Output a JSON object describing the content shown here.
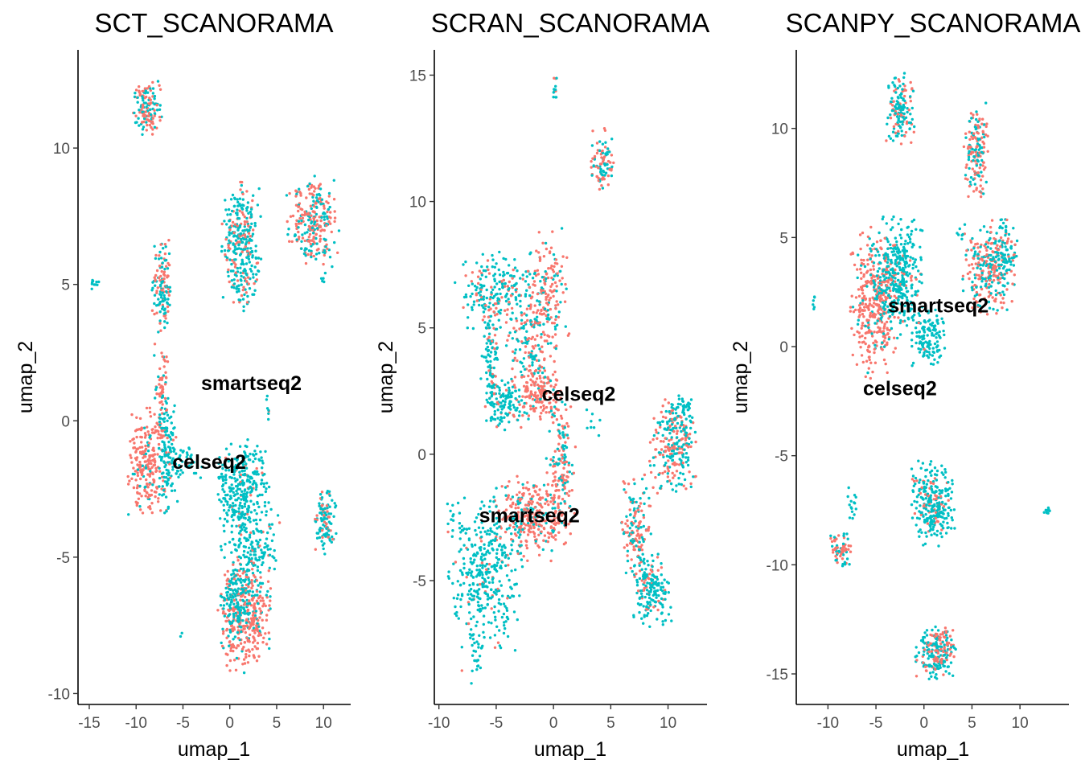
{
  "chart_data": [
    {
      "type": "scatter",
      "title": "SCT_SCANORAMA",
      "xlabel": "umap_1",
      "ylabel": "umap_2",
      "xlim": [
        -16.2,
        12.9
      ],
      "ylim": [
        -10.4,
        13.6
      ],
      "xticks": [
        -15,
        -10,
        -5,
        0,
        5,
        10
      ],
      "xtick_labels": [
        "-15",
        "-10",
        "-5",
        "0",
        "5",
        "10"
      ],
      "yticks": [
        -10,
        -5,
        0,
        5,
        10
      ],
      "ytick_labels": [
        "-10",
        "-5",
        "0",
        "5",
        "10"
      ],
      "grid": false,
      "legend": "none",
      "series": [
        {
          "name": "celseq2",
          "color": "#F8766D"
        },
        {
          "name": "smartseq2",
          "color": "#00BFC4"
        }
      ],
      "labels": [
        {
          "text": "smartseq2",
          "x": 2.3,
          "y": 1.4
        },
        {
          "text": "celseq2",
          "x": -2.2,
          "y": -1.5
        }
      ],
      "clusters": [
        {
          "x": -8.8,
          "y": 11.4,
          "sx": 0.7,
          "sy": 0.5,
          "n": 140,
          "red": 0.55
        },
        {
          "x": 1.2,
          "y": 6.4,
          "sx": 1.0,
          "sy": 1.1,
          "n": 320,
          "red": 0.3
        },
        {
          "x": 8.9,
          "y": 7.3,
          "sx": 1.3,
          "sy": 0.8,
          "n": 260,
          "red": 0.55
        },
        {
          "x": -7.2,
          "y": 4.9,
          "sx": 0.5,
          "sy": 0.8,
          "n": 130,
          "red": 0.45
        },
        {
          "x": -14.3,
          "y": 5.0,
          "sx": 0.25,
          "sy": 0.15,
          "n": 10,
          "red": 0.0
        },
        {
          "x": 10.1,
          "y": 5.2,
          "sx": 0.2,
          "sy": 0.2,
          "n": 5,
          "red": 0.0
        },
        {
          "x": -7.3,
          "y": 1.0,
          "sx": 0.4,
          "sy": 0.9,
          "n": 70,
          "red": 0.7
        },
        {
          "x": -8.8,
          "y": -1.5,
          "sx": 1.0,
          "sy": 0.9,
          "n": 230,
          "red": 0.9
        },
        {
          "x": -6.6,
          "y": -1.4,
          "sx": 0.5,
          "sy": 0.9,
          "n": 120,
          "red": 0.1
        },
        {
          "x": -4.5,
          "y": -1.5,
          "sx": 0.8,
          "sy": 0.3,
          "n": 35,
          "red": 0.05
        },
        {
          "x": 1.4,
          "y": -2.4,
          "sx": 1.3,
          "sy": 0.8,
          "n": 280,
          "red": 0.05
        },
        {
          "x": 2.3,
          "y": -4.8,
          "sx": 1.5,
          "sy": 0.9,
          "n": 220,
          "red": 0.1
        },
        {
          "x": 1.5,
          "y": -7.3,
          "sx": 1.3,
          "sy": 0.9,
          "n": 340,
          "red": 0.8
        },
        {
          "x": 0.5,
          "y": -6.5,
          "sx": 0.7,
          "sy": 0.5,
          "n": 90,
          "red": 0.05
        },
        {
          "x": 10.1,
          "y": -3.6,
          "sx": 0.6,
          "sy": 0.6,
          "n": 110,
          "red": 0.3
        },
        {
          "x": 4.1,
          "y": 0.4,
          "sx": 0.15,
          "sy": 0.25,
          "n": 7,
          "red": 0.3
        },
        {
          "x": -5.3,
          "y": -8.0,
          "sx": 0.1,
          "sy": 0.1,
          "n": 2,
          "red": 0.0
        }
      ]
    },
    {
      "type": "scatter",
      "title": "SCRAN_SCANORAMA",
      "xlabel": "umap_1",
      "ylabel": "umap_2",
      "xlim": [
        -10.4,
        13.4
      ],
      "ylim": [
        -9.9,
        16.0
      ],
      "xticks": [
        -10,
        -5,
        0,
        5,
        10
      ],
      "xtick_labels": [
        "-10",
        "-5",
        "0",
        "5",
        "10"
      ],
      "yticks": [
        -5,
        0,
        5,
        10,
        15
      ],
      "ytick_labels": [
        "-5",
        "0",
        "5",
        "10",
        "15"
      ],
      "grid": false,
      "legend": "none",
      "series": [
        {
          "name": "celseq2",
          "color": "#F8766D"
        },
        {
          "name": "smartseq2",
          "color": "#00BFC4"
        }
      ],
      "labels": [
        {
          "text": "celseq2",
          "x": 2.2,
          "y": 2.4
        },
        {
          "text": "smartseq2",
          "x": -2.1,
          "y": -2.4
        }
      ],
      "clusters": [
        {
          "x": 0.1,
          "y": 14.5,
          "sx": 0.1,
          "sy": 0.2,
          "n": 12,
          "red": 0.3
        },
        {
          "x": 4.3,
          "y": 11.6,
          "sx": 0.5,
          "sy": 0.6,
          "n": 90,
          "red": 0.45
        },
        {
          "x": -4.8,
          "y": 6.5,
          "sx": 1.8,
          "sy": 0.7,
          "n": 220,
          "red": 0.25
        },
        {
          "x": -0.5,
          "y": 6.2,
          "sx": 0.9,
          "sy": 1.3,
          "n": 180,
          "red": 0.7
        },
        {
          "x": -5.5,
          "y": 3.8,
          "sx": 0.4,
          "sy": 1.0,
          "n": 90,
          "red": 0.2
        },
        {
          "x": -2.2,
          "y": 4.0,
          "sx": 0.9,
          "sy": 0.9,
          "n": 130,
          "red": 0.5
        },
        {
          "x": -4.3,
          "y": 2.0,
          "sx": 0.9,
          "sy": 0.5,
          "n": 120,
          "red": 0.15
        },
        {
          "x": -1.1,
          "y": 2.3,
          "sx": 0.9,
          "sy": 0.5,
          "n": 140,
          "red": 0.9
        },
        {
          "x": 0.6,
          "y": -0.5,
          "sx": 0.6,
          "sy": 1.2,
          "n": 150,
          "red": 0.6
        },
        {
          "x": -2.0,
          "y": -2.5,
          "sx": 1.6,
          "sy": 0.8,
          "n": 300,
          "red": 0.8
        },
        {
          "x": -6.0,
          "y": -4.7,
          "sx": 1.6,
          "sy": 1.4,
          "n": 380,
          "red": 0.08
        },
        {
          "x": 7.2,
          "y": -3.0,
          "sx": 0.6,
          "sy": 1.0,
          "n": 150,
          "red": 0.55
        },
        {
          "x": 8.6,
          "y": -5.4,
          "sx": 0.8,
          "sy": 0.7,
          "n": 170,
          "red": 0.2
        },
        {
          "x": 10.5,
          "y": 0.3,
          "sx": 1.0,
          "sy": 0.9,
          "n": 230,
          "red": 0.5
        },
        {
          "x": 11.0,
          "y": 1.5,
          "sx": 0.6,
          "sy": 0.4,
          "n": 60,
          "red": 0.1
        },
        {
          "x": -9.0,
          "y": -2.4,
          "sx": 0.3,
          "sy": 0.3,
          "n": 8,
          "red": 0.0
        },
        {
          "x": 3.5,
          "y": 1.2,
          "sx": 0.3,
          "sy": 0.3,
          "n": 8,
          "red": 0.0
        },
        {
          "x": -7.0,
          "y": -8.0,
          "sx": 0.5,
          "sy": 0.6,
          "n": 25,
          "red": 0.05
        }
      ]
    },
    {
      "type": "scatter",
      "title": "SCANPY_SCANORAMA",
      "xlabel": "umap_1",
      "ylabel": "umap_2",
      "xlim": [
        -13.3,
        15.1
      ],
      "ylim": [
        -16.4,
        13.6
      ],
      "xticks": [
        -10,
        -5,
        0,
        5,
        10
      ],
      "xtick_labels": [
        "-10",
        "-5",
        "0",
        "5",
        "10"
      ],
      "yticks": [
        -15,
        -10,
        -5,
        0,
        5,
        10
      ],
      "ytick_labels": [
        "-15",
        "-10",
        "-5",
        "0",
        "5",
        "10"
      ],
      "grid": false,
      "legend": "none",
      "series": [
        {
          "name": "celseq2",
          "color": "#F8766D"
        },
        {
          "name": "smartseq2",
          "color": "#00BFC4"
        }
      ],
      "labels": [
        {
          "text": "smartseq2",
          "x": 1.5,
          "y": 1.9
        },
        {
          "text": "celseq2",
          "x": -2.5,
          "y": -1.9
        }
      ],
      "clusters": [
        {
          "x": -2.5,
          "y": 10.8,
          "sx": 0.7,
          "sy": 0.8,
          "n": 150,
          "red": 0.3
        },
        {
          "x": 5.4,
          "y": 9.0,
          "sx": 0.6,
          "sy": 1.0,
          "n": 160,
          "red": 0.6
        },
        {
          "x": -5.3,
          "y": 2.0,
          "sx": 1.1,
          "sy": 1.6,
          "n": 330,
          "red": 0.9
        },
        {
          "x": -2.8,
          "y": 3.2,
          "sx": 1.3,
          "sy": 1.3,
          "n": 380,
          "red": 0.15
        },
        {
          "x": 0.3,
          "y": 0.4,
          "sx": 1.0,
          "sy": 0.6,
          "n": 130,
          "red": 0.05
        },
        {
          "x": 6.8,
          "y": 3.6,
          "sx": 1.3,
          "sy": 1.0,
          "n": 260,
          "red": 0.55
        },
        {
          "x": 8.3,
          "y": 4.4,
          "sx": 0.8,
          "sy": 0.7,
          "n": 90,
          "red": 0.15
        },
        {
          "x": 0.8,
          "y": -7.2,
          "sx": 1.1,
          "sy": 0.9,
          "n": 280,
          "red": 0.12
        },
        {
          "x": -8.7,
          "y": -9.3,
          "sx": 0.5,
          "sy": 0.4,
          "n": 70,
          "red": 0.6
        },
        {
          "x": -7.5,
          "y": -7.2,
          "sx": 0.3,
          "sy": 0.4,
          "n": 15,
          "red": 0.0
        },
        {
          "x": 1.2,
          "y": -14.0,
          "sx": 1.0,
          "sy": 0.6,
          "n": 220,
          "red": 0.45
        },
        {
          "x": 12.9,
          "y": -7.5,
          "sx": 0.2,
          "sy": 0.1,
          "n": 10,
          "red": 0.0
        },
        {
          "x": -11.5,
          "y": 2.0,
          "sx": 0.1,
          "sy": 0.2,
          "n": 6,
          "red": 0.2
        },
        {
          "x": 3.6,
          "y": 5.2,
          "sx": 0.3,
          "sy": 0.1,
          "n": 5,
          "red": 0.0
        }
      ]
    }
  ]
}
